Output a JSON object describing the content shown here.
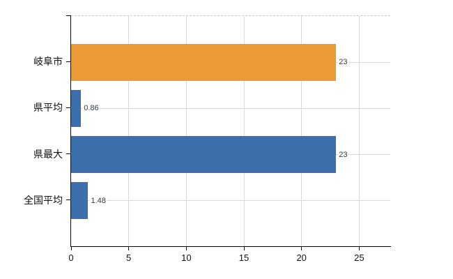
{
  "chart_data": {
    "type": "bar",
    "orientation": "horizontal",
    "title": "",
    "xlabel": "",
    "ylabel": "",
    "categories": [
      "岐阜市",
      "県平均",
      "県最大",
      "全国平均"
    ],
    "values": [
      23,
      0.86,
      23,
      1.48
    ],
    "value_labels": [
      "23",
      "0.86",
      "23",
      "1.48"
    ],
    "bar_colors": [
      "#eb9a38",
      "#3e6fad",
      "#3e6fad",
      "#3e6fad"
    ],
    "x_tick_labels": [
      "0",
      "5",
      "10",
      "15",
      "20",
      "25"
    ],
    "x_tick_values": [
      0,
      5,
      10,
      15,
      20,
      25
    ],
    "xlim": [
      0,
      27.7
    ],
    "grid": "on",
    "legend": "none",
    "colors": {
      "orange_series": "#eb9a38",
      "blue_series": "#3e6fad",
      "gridline": "#d9d9d9",
      "plot_top_border": "#ccc8c8",
      "axis": "#000000",
      "category_text": "#111111",
      "tick_text": "#111111",
      "value_text": "#333a47",
      "background": "#ffffff"
    }
  }
}
